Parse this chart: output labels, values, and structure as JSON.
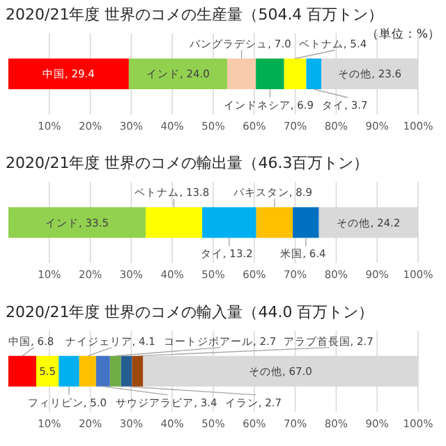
{
  "chart_data": [
    {
      "type": "bar",
      "orientation": "horizontal",
      "stacked": true,
      "title": "2020/21年度 世界のコメの生産量（504.4 百万トン）",
      "subtitle": "（単位：%）",
      "categories": [
        null
      ],
      "xlim": [
        0,
        100
      ],
      "xticks": [
        {
          "value": 10,
          "label": "10%"
        },
        {
          "value": 20,
          "label": "20%"
        },
        {
          "value": 30,
          "label": "30%"
        },
        {
          "value": 40,
          "label": "40%"
        },
        {
          "value": 50,
          "label": "50%"
        },
        {
          "value": 60,
          "label": "60%"
        },
        {
          "value": 70,
          "label": "70%"
        },
        {
          "value": 80,
          "label": "80%"
        },
        {
          "value": 90,
          "label": "90%"
        },
        {
          "value": 100,
          "label": "100%"
        }
      ],
      "grid": "x",
      "series": [
        {
          "color": "#ff0000",
          "values": [
            29.4
          ],
          "value_labels": [
            "中国, 29.4"
          ]
        },
        {
          "color": "#92d050",
          "values": [
            24.0
          ],
          "value_labels": [
            "インド, 24.0"
          ]
        },
        {
          "color": "#f8cbad",
          "values": [
            7.0
          ],
          "value_labels": [
            "バングラデシュ, 7.0"
          ]
        },
        {
          "color": "#00b050",
          "values": [
            6.9
          ],
          "value_labels": [
            "インドネシア, 6.9"
          ]
        },
        {
          "color": "#ffff00",
          "values": [
            5.4
          ],
          "value_labels": [
            "ベトナム, 5.4"
          ]
        },
        {
          "color": "#00b0f0",
          "values": [
            3.7
          ],
          "value_labels": [
            "タイ, 3.7"
          ]
        },
        {
          "color": "#d9d9d9",
          "values": [
            23.6
          ],
          "value_labels": [
            "その他, 23.6"
          ]
        }
      ]
    },
    {
      "type": "bar",
      "orientation": "horizontal",
      "stacked": true,
      "title": "2020/21年度 世界のコメの輸出量（46.3百万トン）",
      "categories": [
        null
      ],
      "xlim": [
        0,
        100
      ],
      "xticks": [
        {
          "value": 10,
          "label": "10%"
        },
        {
          "value": 20,
          "label": "20%"
        },
        {
          "value": 30,
          "label": "30%"
        },
        {
          "value": 40,
          "label": "40%"
        },
        {
          "value": 50,
          "label": "50%"
        },
        {
          "value": 60,
          "label": "60%"
        },
        {
          "value": 70,
          "label": "70%"
        },
        {
          "value": 80,
          "label": "80%"
        },
        {
          "value": 90,
          "label": "90%"
        },
        {
          "value": 100,
          "label": "100%"
        }
      ],
      "grid": "x",
      "series": [
        {
          "color": "#92d050",
          "values": [
            33.5
          ],
          "value_labels": [
            "インド, 33.5"
          ]
        },
        {
          "color": "#ffff00",
          "values": [
            13.8
          ],
          "value_labels": [
            "ベトナム, 13.8"
          ]
        },
        {
          "color": "#00b0f0",
          "values": [
            13.2
          ],
          "value_labels": [
            "タイ, 13.2"
          ]
        },
        {
          "color": "#ffc000",
          "values": [
            8.9
          ],
          "value_labels": [
            "パキスタン, 8.9"
          ]
        },
        {
          "color": "#0070c0",
          "values": [
            6.4
          ],
          "value_labels": [
            "米国, 6.4"
          ]
        },
        {
          "color": "#d9d9d9",
          "values": [
            24.2
          ],
          "value_labels": [
            "その他, 24.2"
          ]
        }
      ]
    },
    {
      "type": "bar",
      "orientation": "horizontal",
      "stacked": true,
      "title": "2020/21年度 世界のコメの輸入量（44.0 百万トン）",
      "categories": [
        null
      ],
      "xlim": [
        0,
        100
      ],
      "xticks": [
        {
          "value": 10,
          "label": "10%"
        },
        {
          "value": 20,
          "label": "20%"
        },
        {
          "value": 30,
          "label": "30%"
        },
        {
          "value": 40,
          "label": "40%"
        },
        {
          "value": 50,
          "label": "50%"
        },
        {
          "value": 60,
          "label": "60%"
        },
        {
          "value": 70,
          "label": "70%"
        },
        {
          "value": 80,
          "label": "80%"
        },
        {
          "value": 90,
          "label": "90%"
        },
        {
          "value": 100,
          "label": "100%"
        }
      ],
      "grid": "x",
      "series": [
        {
          "color": "#ff0000",
          "values": [
            6.8
          ],
          "value_labels": [
            "中国, 6.8"
          ]
        },
        {
          "color": "#ffff00",
          "values": [
            5.5
          ],
          "value_labels": [
            "5.5"
          ]
        },
        {
          "color": "#00b0f0",
          "values": [
            5.0
          ],
          "value_labels": [
            "フィリピン, 5.0"
          ]
        },
        {
          "color": "#ffc000",
          "values": [
            4.1
          ],
          "value_labels": [
            "ナイジェリア, 4.1"
          ]
        },
        {
          "color": "#4472c4",
          "values": [
            3.4
          ],
          "value_labels": [
            "サウジアラビア, 3.4"
          ]
        },
        {
          "color": "#70ad47",
          "values": [
            2.7
          ],
          "value_labels": [
            "コートジボアール, 2.7"
          ]
        },
        {
          "color": "#255e91",
          "values": [
            2.7
          ],
          "value_labels": [
            "イラン, 2.7"
          ]
        },
        {
          "color": "#9e480e",
          "values": [
            2.7
          ],
          "value_labels": [
            "アラブ首長国, 2.7"
          ]
        },
        {
          "color": "#d9d9d9",
          "values": [
            67.0
          ],
          "value_labels": [
            "その他, 67.0"
          ]
        }
      ]
    }
  ]
}
